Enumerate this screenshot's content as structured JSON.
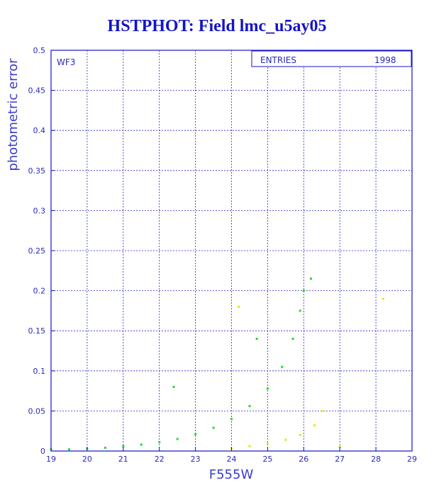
{
  "title": "HSTPHOT: Field lmc_u5ay05",
  "chart_data": {
    "type": "scatter",
    "title": "HSTPHOT: Field lmc_u5ay05",
    "xlabel": "F555W",
    "ylabel": "photometric error",
    "xlim": [
      19,
      29
    ],
    "ylim": [
      0,
      0.5
    ],
    "x_ticks": [
      "19",
      "20",
      "21",
      "22",
      "23",
      "24",
      "25",
      "26",
      "27",
      "28",
      "29"
    ],
    "y_ticks": [
      "0",
      "0.05",
      "0.1",
      "0.15",
      "0.2",
      "0.25",
      "0.3",
      "0.35",
      "0.4",
      "0.45",
      "0.5"
    ],
    "grid": true,
    "panel_label": "WF3",
    "stats_box": {
      "label": "ENTRIES",
      "value": "1998"
    },
    "series": [
      {
        "color": "#22dd22",
        "shape": "exponential error curve",
        "points": [
          [
            19.0,
            0.002
          ],
          [
            19.5,
            0.002
          ],
          [
            20.0,
            0.003
          ],
          [
            20.5,
            0.004
          ],
          [
            21.0,
            0.006
          ],
          [
            21.5,
            0.008
          ],
          [
            22.0,
            0.011
          ],
          [
            22.5,
            0.015
          ],
          [
            23.0,
            0.021
          ],
          [
            23.5,
            0.029
          ],
          [
            24.0,
            0.04
          ],
          [
            24.5,
            0.056
          ],
          [
            25.0,
            0.078
          ],
          [
            25.4,
            0.105
          ],
          [
            25.7,
            0.14
          ],
          [
            25.9,
            0.175
          ],
          [
            26.0,
            0.2
          ],
          [
            26.2,
            0.215
          ],
          [
            22.4,
            0.08
          ],
          [
            24.7,
            0.14
          ]
        ]
      },
      {
        "color": "#e6e600",
        "shape": "lower sequence",
        "points": [
          [
            24.0,
            0.003
          ],
          [
            24.5,
            0.006
          ],
          [
            25.0,
            0.009
          ],
          [
            25.5,
            0.014
          ],
          [
            25.9,
            0.02
          ],
          [
            26.3,
            0.032
          ],
          [
            27.0,
            0.005
          ],
          [
            28.2,
            0.19
          ],
          [
            26.5,
            0.05
          ],
          [
            24.2,
            0.18
          ]
        ]
      }
    ]
  }
}
